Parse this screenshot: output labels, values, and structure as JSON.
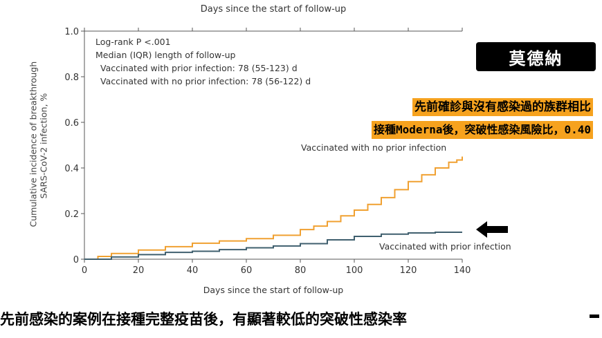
{
  "chart_data": {
    "type": "line",
    "title": "",
    "xlabel": "Days since the start of follow-up",
    "ylabel_lines": [
      "Cumulative incidence of breakthrough",
      "SARS-CoV-2 infection, %"
    ],
    "xlim": [
      0,
      140
    ],
    "ylim": [
      0,
      1.0
    ],
    "x_ticks": [
      "0",
      "20",
      "40",
      "60",
      "80",
      "100",
      "120",
      "140"
    ],
    "y_ticks": [
      "0",
      "0.2",
      "0.4",
      "0.6",
      "0.8",
      "1.0"
    ],
    "grid": false,
    "annotations": {
      "logrank": "Log-rank P <.001",
      "median_header": "Median (IQR) length of follow-up",
      "median_prior": "Vaccinated with prior infection: 78 (55-123) d",
      "median_noprior": "Vaccinated with no prior infection: 78 (56-122) d"
    },
    "series": [
      {
        "name": "Vaccinated with no prior infection",
        "color": "#f0a030",
        "x": [
          0,
          5,
          10,
          20,
          30,
          40,
          50,
          60,
          70,
          80,
          85,
          90,
          95,
          100,
          105,
          110,
          115,
          120,
          125,
          130,
          135,
          138,
          140
        ],
        "y": [
          0,
          0.012,
          0.025,
          0.04,
          0.055,
          0.07,
          0.08,
          0.09,
          0.105,
          0.13,
          0.145,
          0.165,
          0.19,
          0.215,
          0.24,
          0.27,
          0.305,
          0.34,
          0.37,
          0.4,
          0.425,
          0.435,
          0.45
        ]
      },
      {
        "name": "Vaccinated with prior infection",
        "color": "#3f5f6e",
        "x": [
          0,
          10,
          20,
          30,
          40,
          50,
          60,
          70,
          80,
          90,
          100,
          110,
          120,
          130,
          140
        ],
        "y": [
          0,
          0.01,
          0.02,
          0.03,
          0.035,
          0.042,
          0.05,
          0.058,
          0.068,
          0.085,
          0.1,
          0.11,
          0.115,
          0.118,
          0.118
        ]
      }
    ]
  },
  "overlay": {
    "brand": "莫德納",
    "highlight_line1": "先前確診與沒有感染過的族群相比",
    "highlight_line2": "接種Moderna後，突破性感染風險比，0.40",
    "subtitle": "先前感染的案例在接種完整疫苗後，有顯著較低的突破性感染率",
    "highlight_color": "#f6a21e",
    "arrow_icon": "left-arrow-icon"
  }
}
